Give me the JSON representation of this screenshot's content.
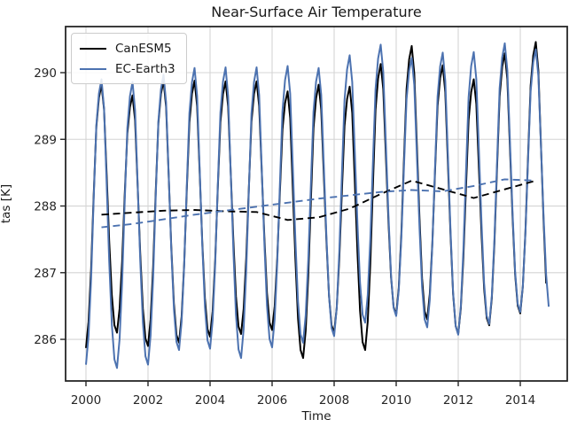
{
  "chart_data": {
    "type": "line",
    "title": "Near-Surface Air Temperature",
    "xlabel": "Time",
    "ylabel": "tas [K]",
    "xlim": [
      1999.343,
      2015.514
    ],
    "ylim": [
      285.376,
      290.691
    ],
    "xticks": [
      2000,
      2002,
      2004,
      2006,
      2008,
      2010,
      2012,
      2014
    ],
    "yticks": [
      286,
      287,
      288,
      289,
      290
    ],
    "grid": true,
    "grid_color": "#d4d4d4",
    "spine_color": "#262626",
    "text_color": "#262626",
    "legend_position": "upper-left",
    "years": [
      2000,
      2001,
      2002,
      2003,
      2004,
      2005,
      2006,
      2007,
      2008,
      2009,
      2010,
      2011,
      2012,
      2013,
      2014
    ],
    "seasonal_shape": [
      0.0,
      0.1,
      0.3,
      0.58,
      0.84,
      0.95,
      1.0,
      0.9,
      0.64,
      0.37,
      0.15,
      0.03
    ],
    "series": [
      {
        "name": "CanESM5",
        "color": "#000000",
        "line": "solid",
        "months": 179,
        "yearly_peaks": [
          289.82,
          289.66,
          289.88,
          289.88,
          289.87,
          289.87,
          289.72,
          289.82,
          289.79,
          290.13,
          290.4,
          290.11,
          289.9,
          290.29,
          290.46
        ],
        "yearly_troughs": [
          285.87,
          286.1,
          285.9,
          285.95,
          286.04,
          286.08,
          286.14,
          285.72,
          286.1,
          285.84,
          286.37,
          286.3,
          286.08,
          286.21,
          286.39
        ],
        "next_trough": 286.2
      },
      {
        "name": "EC-Earth3",
        "color": "#4C72B0",
        "line": "solid",
        "months": 180,
        "yearly_peaks": [
          289.9,
          289.86,
          289.97,
          290.07,
          290.08,
          290.08,
          290.1,
          290.07,
          290.26,
          290.42,
          290.22,
          290.3,
          290.31,
          290.44,
          290.35
        ],
        "yearly_troughs": [
          285.62,
          285.57,
          285.62,
          285.84,
          285.86,
          285.72,
          285.88,
          285.95,
          286.05,
          286.25,
          286.35,
          286.18,
          286.07,
          286.23,
          286.41
        ],
        "next_trough": 286.37
      }
    ],
    "annual_means": [
      {
        "name": "CanESM5 annual mean",
        "color": "#000000",
        "line": "dashed",
        "x_mid_year": true,
        "values": [
          287.87,
          287.9,
          287.93,
          287.94,
          287.92,
          287.91,
          287.79,
          287.83,
          287.96,
          288.18,
          288.38,
          288.25,
          288.12,
          288.25,
          288.38
        ]
      },
      {
        "name": "EC-Earth3 annual mean",
        "color": "#4C72B0",
        "line": "dashed",
        "x_mid_year": true,
        "values": [
          287.68,
          287.73,
          287.8,
          287.87,
          287.93,
          287.99,
          288.05,
          288.11,
          288.16,
          288.21,
          288.24,
          288.22,
          288.3,
          288.4,
          288.38
        ]
      }
    ]
  }
}
